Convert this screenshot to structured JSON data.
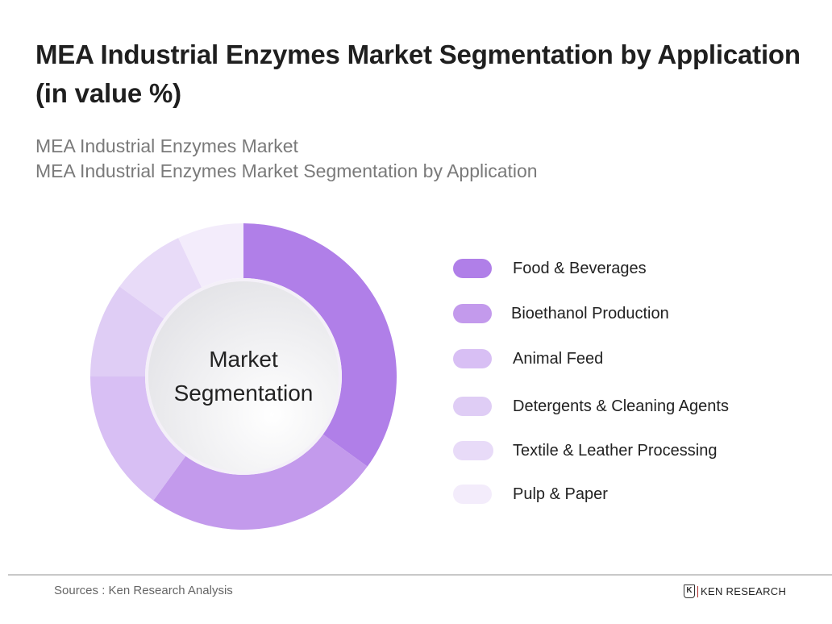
{
  "header": {
    "title": "MEA Industrial Enzymes Market Segmentation by Application (in value %)",
    "subtitle_line1": "MEA Industrial Enzymes Market",
    "subtitle_line2": "MEA Industrial Enzymes Market Segmentation by Application"
  },
  "chart": {
    "center_label_line1": "Market",
    "center_label_line2": "Segmentation"
  },
  "legend": {
    "items": [
      {
        "label": "Food & Beverages",
        "color": "#b07fe8"
      },
      {
        "label": "Bioethanol Production",
        "color": "#c39aec"
      },
      {
        "label": "Animal Feed",
        "color": "#d8bff4"
      },
      {
        "label": "Detergents & Cleaning Agents",
        "color": "#dfcdf5"
      },
      {
        "label": "Textile & Leather Processing",
        "color": "#e8dbf8"
      },
      {
        "label": "Pulp & Paper",
        "color": "#f3ecfb"
      }
    ]
  },
  "footer": {
    "source": "Sources : Ken Research Analysis",
    "brand_mark": "K",
    "brand": "KEN RESEARCH"
  },
  "chart_data": {
    "type": "pie",
    "title": "MEA Industrial Enzymes Market Segmentation by Application (in value %)",
    "subtitle": "MEA Industrial Enzymes Market Segmentation by Application",
    "donut": true,
    "center_text": "Market Segmentation",
    "categories": [
      "Food & Beverages",
      "Bioethanol Production",
      "Animal Feed",
      "Detergents & Cleaning Agents",
      "Textile & Leather Processing",
      "Pulp & Paper"
    ],
    "values": [
      35,
      25,
      15,
      10,
      8,
      7
    ],
    "unit": "%",
    "colors": [
      "#b07fe8",
      "#c39aec",
      "#d8bff4",
      "#dfcdf5",
      "#e8dbf8",
      "#f3ecfb"
    ],
    "legend_position": "right",
    "start_angle": "top, clockwise"
  }
}
